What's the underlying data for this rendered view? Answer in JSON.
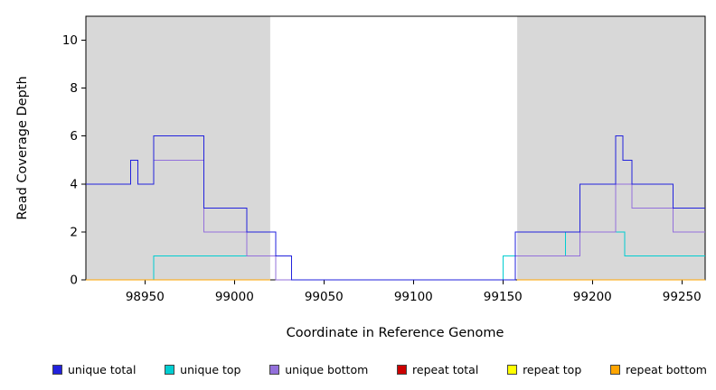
{
  "chart_data": {
    "type": "line",
    "subtype": "step",
    "title": "",
    "xlabel": "Coordinate in Reference Genome",
    "ylabel": "Read Coverage Depth",
    "xlim": [
      98917,
      99263
    ],
    "ylim": [
      0,
      11
    ],
    "x_ticks": [
      98950,
      99000,
      99050,
      99100,
      99150,
      99200,
      99250
    ],
    "y_ticks": [
      0,
      2,
      4,
      6,
      8,
      10
    ],
    "grid": false,
    "legend_position": "bottom",
    "axis_color": "#000000",
    "region_color": "#d8d8d8",
    "background_regions": [
      {
        "x0": 98917,
        "x1": 99020
      },
      {
        "x0": 99158,
        "x1": 99263
      }
    ],
    "series": [
      {
        "name": "unique total",
        "color": "#2222dd",
        "segments": [
          [
            [
              98917,
              4
            ],
            [
              98942,
              5
            ],
            [
              98946,
              4
            ],
            [
              98955,
              6
            ],
            [
              98983,
              3
            ],
            [
              99007,
              2
            ],
            [
              99023,
              1
            ],
            [
              99032,
              0
            ],
            [
              99157,
              2
            ],
            [
              99193,
              4
            ],
            [
              99213,
              6
            ],
            [
              99217,
              5
            ],
            [
              99222,
              4
            ],
            [
              99245,
              3
            ],
            [
              99263,
              3
            ]
          ]
        ]
      },
      {
        "name": "unique top",
        "color": "#00cdd1",
        "segments": [
          [
            [
              98917,
              0
            ],
            [
              98955,
              1
            ],
            [
              99032,
              0
            ],
            [
              99150,
              1
            ],
            [
              99185,
              2
            ],
            [
              99218,
              1
            ],
            [
              99263,
              1
            ]
          ]
        ]
      },
      {
        "name": "unique bottom",
        "color": "#9370db",
        "segments": [
          [
            [
              98917,
              4
            ],
            [
              98942,
              5
            ],
            [
              98946,
              4
            ],
            [
              98955,
              5
            ],
            [
              98983,
              2
            ],
            [
              99007,
              1
            ],
            [
              99023,
              0
            ],
            [
              99157,
              1
            ],
            [
              99193,
              2
            ],
            [
              99213,
              4
            ],
            [
              99222,
              3
            ],
            [
              99245,
              2
            ],
            [
              99263,
              2
            ]
          ]
        ]
      },
      {
        "name": "repeat total",
        "color": "#cc0000",
        "segments": [
          [
            [
              98917,
              0
            ],
            [
              99020,
              0
            ]
          ],
          [
            [
              99158,
              0
            ],
            [
              99263,
              0
            ]
          ]
        ]
      },
      {
        "name": "repeat top",
        "color": "#ffff00",
        "segments": [
          [
            [
              98917,
              0
            ],
            [
              99020,
              0
            ]
          ],
          [
            [
              99158,
              0
            ],
            [
              99263,
              0
            ]
          ]
        ]
      },
      {
        "name": "repeat bottom",
        "color": "#ffa500",
        "segments": [
          [
            [
              98917,
              0
            ],
            [
              99020,
              0
            ]
          ],
          [
            [
              99158,
              0
            ],
            [
              99263,
              0
            ]
          ]
        ]
      }
    ],
    "draw_order": [
      1,
      2,
      0,
      3,
      4,
      5
    ]
  }
}
